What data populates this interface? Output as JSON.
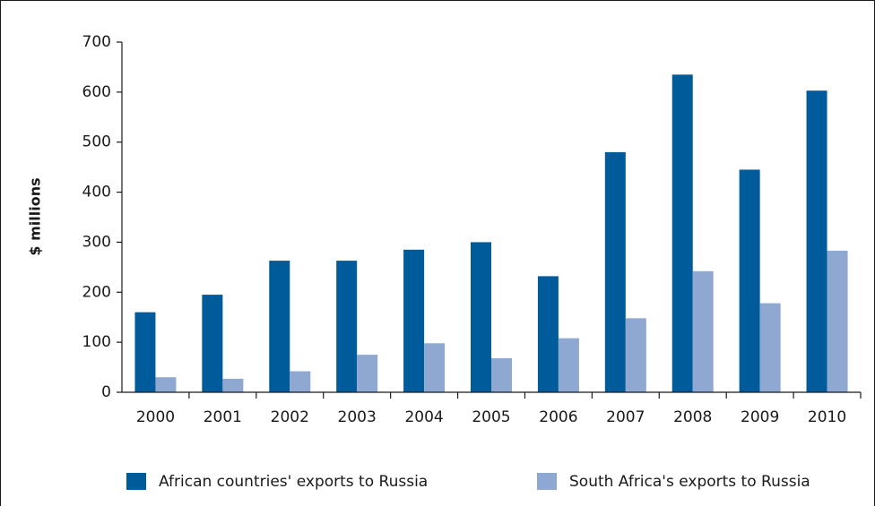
{
  "chart_data": {
    "type": "bar",
    "y_label": "$ millions",
    "categories": [
      "2000",
      "2001",
      "2002",
      "2003",
      "2004",
      "2005",
      "2006",
      "2007",
      "2008",
      "2009",
      "2010"
    ],
    "series": [
      {
        "name": "African countries' exports to Russia",
        "color": "#005b9a",
        "values": [
          160,
          195,
          263,
          263,
          285,
          300,
          232,
          480,
          635,
          445,
          603
        ]
      },
      {
        "name": "South Africa's exports to Russia",
        "color": "#8fa8d2",
        "values": [
          30,
          27,
          42,
          75,
          98,
          68,
          108,
          148,
          242,
          178,
          283
        ]
      }
    ],
    "ylim": [
      0,
      700
    ],
    "yticks": [
      0,
      100,
      200,
      300,
      400,
      500,
      600,
      700
    ],
    "grid": false,
    "legend": "bottom"
  }
}
